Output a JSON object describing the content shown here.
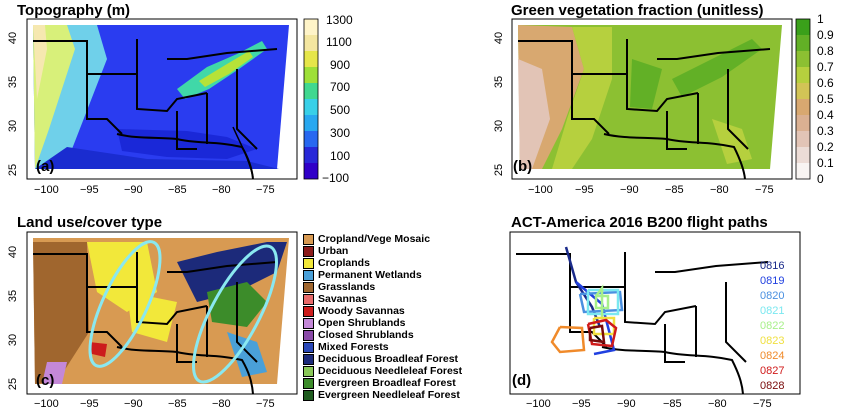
{
  "panels": [
    {
      "id": "a",
      "title": "Topography (m)",
      "label": "(a)"
    },
    {
      "id": "b",
      "title": "Green vegetation fraction (unitless)",
      "label": "(b)"
    },
    {
      "id": "c",
      "title": "Land use/cover type",
      "label": "(c)"
    },
    {
      "id": "d",
      "title": "ACT-America 2016 B200 flight paths",
      "label": "(d)"
    }
  ],
  "x_ticks": [
    "−100",
    "−95",
    "−90",
    "−85",
    "−80",
    "−75"
  ],
  "y_ticks": [
    "40",
    "35",
    "30",
    "25"
  ],
  "topo_colorbar": {
    "ticks": [
      "1300",
      "1100",
      "900",
      "700",
      "500",
      "300",
      "100",
      "−100"
    ],
    "colors": [
      "#fff4c8",
      "#f4e6a0",
      "#e6e64a",
      "#9ee038",
      "#40d890",
      "#38d0e8",
      "#28a8f0",
      "#2868f0",
      "#2828d8",
      "#3000c8"
    ]
  },
  "gvf_colorbar": {
    "ticks": [
      "1",
      "0.9",
      "0.8",
      "0.7",
      "0.6",
      "0.5",
      "0.4",
      "0.3",
      "0.2",
      "0.1",
      "0"
    ],
    "colors": [
      "#3aa01a",
      "#62b026",
      "#8cc032",
      "#b6d03e",
      "#d2c456",
      "#d8a870",
      "#dab092",
      "#e2c4b6",
      "#ecdcd6",
      "#f8f4f2"
    ]
  },
  "landuse_legend": [
    {
      "label": "Cropland/Vege Mosaic",
      "color": "#d89a52"
    },
    {
      "label": "Urban",
      "color": "#8b1a1a"
    },
    {
      "label": "Croplands",
      "color": "#f2e83a"
    },
    {
      "label": "Permanent Wetlands",
      "color": "#4aa0d8"
    },
    {
      "label": "Grasslands",
      "color": "#a0662e"
    },
    {
      "label": "Savannas",
      "color": "#e86a6a"
    },
    {
      "label": "Woody Savannas",
      "color": "#cc1c1c"
    },
    {
      "label": "Open Shrublands",
      "color": "#c488d8"
    },
    {
      "label": "Closed Shrublands",
      "color": "#8a4aa8"
    },
    {
      "label": "Mixed Forests",
      "color": "#2a48b8"
    },
    {
      "label": "Deciduous Broadleaf Forest",
      "color": "#1c2a7a"
    },
    {
      "label": "Deciduous Needleleaf Forest",
      "color": "#8ac858"
    },
    {
      "label": "Evergreen Broadleaf Forest",
      "color": "#3c8c2a"
    },
    {
      "label": "Evergreen Needleleaf Forest",
      "color": "#1f5c1f"
    }
  ],
  "flight_dates": [
    {
      "label": "0816",
      "color": "#1a2a8a"
    },
    {
      "label": "0819",
      "color": "#2040e0"
    },
    {
      "label": "0820",
      "color": "#4a90e0"
    },
    {
      "label": "0821",
      "color": "#7ae8f0"
    },
    {
      "label": "0822",
      "color": "#a8f08a"
    },
    {
      "label": "0823",
      "color": "#f0e040"
    },
    {
      "label": "0824",
      "color": "#f08a2a"
    },
    {
      "label": "0827",
      "color": "#d01a1a"
    },
    {
      "label": "0828",
      "color": "#7a0a0a"
    }
  ]
}
